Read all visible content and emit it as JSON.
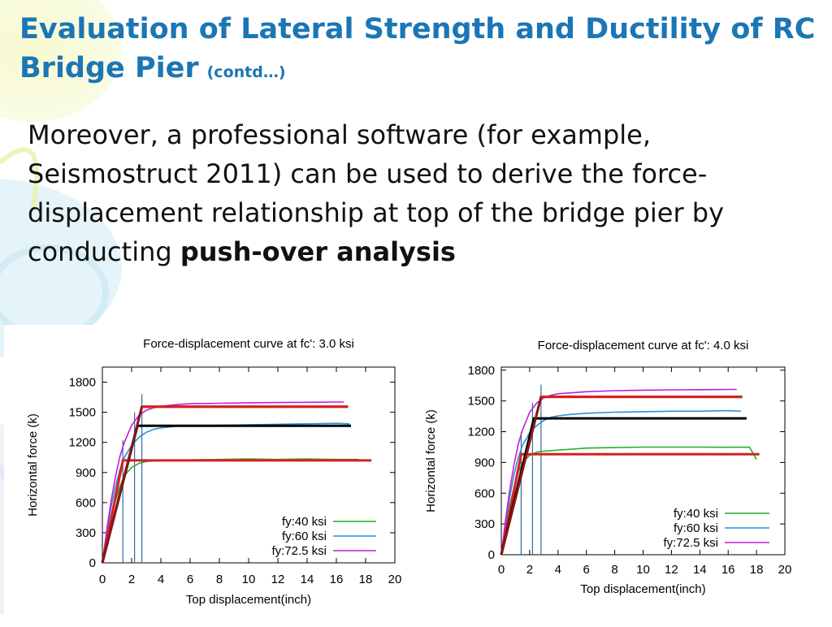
{
  "slide": {
    "title_main": "Evaluation of Lateral Strength and Ductility of RC Bridge Pier",
    "title_suffix": "(contd…)",
    "paragraph_text": "Moreover,  a professional software (for example, Seismostruct 2011) can be used to derive the force-displacement relationship at top of the bridge pier by conducting ",
    "paragraph_emphasis": "push-over analysis"
  },
  "colors": {
    "title": "#1b76b5",
    "fy40": "#22b022",
    "fy60": "#2a8fd8",
    "fy725": "#c21ed8",
    "bilinear_red": "#d62020",
    "bilinear_black": "#000000",
    "bilinear_dark_red": "#8b1515",
    "yield_lines": "#2c6fa8"
  },
  "chart_data": [
    {
      "type": "line",
      "title": "Force-displacement curve at fc': 3.0 ksi",
      "xlabel": "Top displacement(inch)",
      "ylabel": "Horizontal force (k)",
      "xlim": [
        0,
        20
      ],
      "ylim": [
        0,
        1950
      ],
      "xticks": [
        0,
        2,
        4,
        6,
        8,
        10,
        12,
        14,
        16,
        18,
        20
      ],
      "yticks": [
        0,
        300,
        600,
        900,
        1200,
        1500,
        1800
      ],
      "grid": false,
      "legend_position": "bottom-right",
      "series": [
        {
          "name": "fy:40 ksi",
          "color_key": "fy40",
          "x": [
            0,
            0.3,
            0.6,
            0.9,
            1.2,
            1.5,
            2.0,
            2.5,
            3,
            4,
            5,
            6,
            8,
            10,
            12,
            14,
            16,
            17.5
          ],
          "y": [
            0,
            230,
            450,
            620,
            760,
            870,
            950,
            990,
            1010,
            1020,
            1025,
            1025,
            1030,
            1035,
            1030,
            1035,
            1030,
            1030
          ]
        },
        {
          "name": "fy:60 ksi",
          "color_key": "fy60",
          "x": [
            0,
            0.3,
            0.6,
            0.9,
            1.2,
            1.5,
            2.0,
            2.5,
            3,
            3.5,
            4,
            5,
            6,
            8,
            10,
            12,
            14,
            16,
            16.9
          ],
          "y": [
            0,
            290,
            560,
            760,
            930,
            1050,
            1170,
            1250,
            1300,
            1330,
            1345,
            1360,
            1365,
            1370,
            1375,
            1380,
            1385,
            1390,
            1385
          ]
        },
        {
          "name": "fy:72.5 ksi",
          "color_key": "fy725",
          "x": [
            0,
            0.3,
            0.6,
            0.9,
            1.2,
            1.5,
            2.0,
            2.5,
            3,
            3.5,
            4,
            5,
            6,
            8,
            10,
            12,
            14,
            16,
            16.5
          ],
          "y": [
            0,
            330,
            620,
            860,
            1060,
            1200,
            1370,
            1470,
            1520,
            1545,
            1560,
            1575,
            1585,
            1590,
            1595,
            1597,
            1600,
            1602,
            1602
          ]
        }
      ],
      "bilinear_lines": [
        {
          "color_key": "bilinear_red",
          "x": [
            0,
            1.4,
            18.4
          ],
          "y": [
            0,
            1020,
            1020
          ]
        },
        {
          "color_key": "bilinear_black",
          "x": [
            0,
            2.4,
            17.0
          ],
          "y": [
            0,
            1365,
            1365
          ]
        },
        {
          "color_key": "bilinear_dark_red",
          "x": [
            0,
            2.7,
            16.8
          ],
          "y": [
            0,
            1555,
            1555
          ]
        },
        {
          "color_key": "bilinear_red",
          "x": [
            2.7,
            16.8
          ],
          "y": [
            1555,
            1555
          ]
        }
      ],
      "vertical_markers": [
        {
          "x": 1.4,
          "y_top": 1220
        },
        {
          "x": 2.2,
          "y_top": 1500
        },
        {
          "x": 2.7,
          "y_top": 1680
        }
      ]
    },
    {
      "type": "line",
      "title": "Force-displacement curve at fc': 4.0 ksi",
      "xlabel": "Top displacement(inch)",
      "ylabel": "Horizontal force (k)",
      "xlim": [
        0,
        20
      ],
      "ylim": [
        0,
        1830
      ],
      "xticks": [
        0,
        2,
        4,
        6,
        8,
        10,
        12,
        14,
        16,
        18,
        20
      ],
      "yticks": [
        0,
        300,
        600,
        900,
        1200,
        1500,
        1800
      ],
      "grid": false,
      "legend_position": "bottom-right",
      "series": [
        {
          "name": "fy:40 ksi",
          "color_key": "fy40",
          "x": [
            0,
            0.3,
            0.6,
            0.9,
            1.2,
            1.5,
            2.0,
            2.5,
            3,
            4,
            5,
            6,
            8,
            10,
            12,
            14,
            16,
            17.5,
            17.8,
            18.0
          ],
          "y": [
            0,
            250,
            480,
            660,
            800,
            900,
            970,
            1000,
            1010,
            1020,
            1030,
            1040,
            1045,
            1050,
            1050,
            1050,
            1048,
            1050,
            980,
            930
          ]
        },
        {
          "name": "fy:60 ksi",
          "color_key": "fy60",
          "x": [
            0,
            0.3,
            0.6,
            0.9,
            1.2,
            1.5,
            2.0,
            2.5,
            3,
            3.5,
            4,
            5,
            6,
            8,
            10,
            12,
            14,
            16,
            16.9
          ],
          "y": [
            0,
            300,
            570,
            780,
            950,
            1070,
            1190,
            1260,
            1310,
            1340,
            1355,
            1370,
            1380,
            1390,
            1395,
            1400,
            1400,
            1405,
            1400
          ]
        },
        {
          "name": "fy:72.5 ksi",
          "color_key": "fy725",
          "x": [
            0,
            0.3,
            0.6,
            0.9,
            1.2,
            1.5,
            2.0,
            2.5,
            3,
            3.5,
            4,
            5,
            6,
            8,
            10,
            12,
            14,
            16,
            16.6
          ],
          "y": [
            0,
            340,
            640,
            880,
            1080,
            1220,
            1390,
            1480,
            1530,
            1555,
            1570,
            1580,
            1590,
            1600,
            1605,
            1608,
            1610,
            1612,
            1612
          ]
        }
      ],
      "bilinear_lines": [
        {
          "color_key": "bilinear_red",
          "x": [
            0,
            1.4,
            18.2
          ],
          "y": [
            0,
            980,
            980
          ]
        },
        {
          "color_key": "bilinear_black",
          "x": [
            0,
            2.3,
            17.3
          ],
          "y": [
            0,
            1330,
            1330
          ]
        },
        {
          "color_key": "bilinear_dark_red",
          "x": [
            0,
            2.8,
            17.0
          ],
          "y": [
            0,
            1540,
            1540
          ]
        },
        {
          "color_key": "bilinear_red",
          "x": [
            2.8,
            17.0
          ],
          "y": [
            1540,
            1540
          ]
        }
      ],
      "vertical_markers": [
        {
          "x": 1.4,
          "y_top": 1200
        },
        {
          "x": 2.2,
          "y_top": 1480
        },
        {
          "x": 2.8,
          "y_top": 1660
        }
      ]
    }
  ]
}
